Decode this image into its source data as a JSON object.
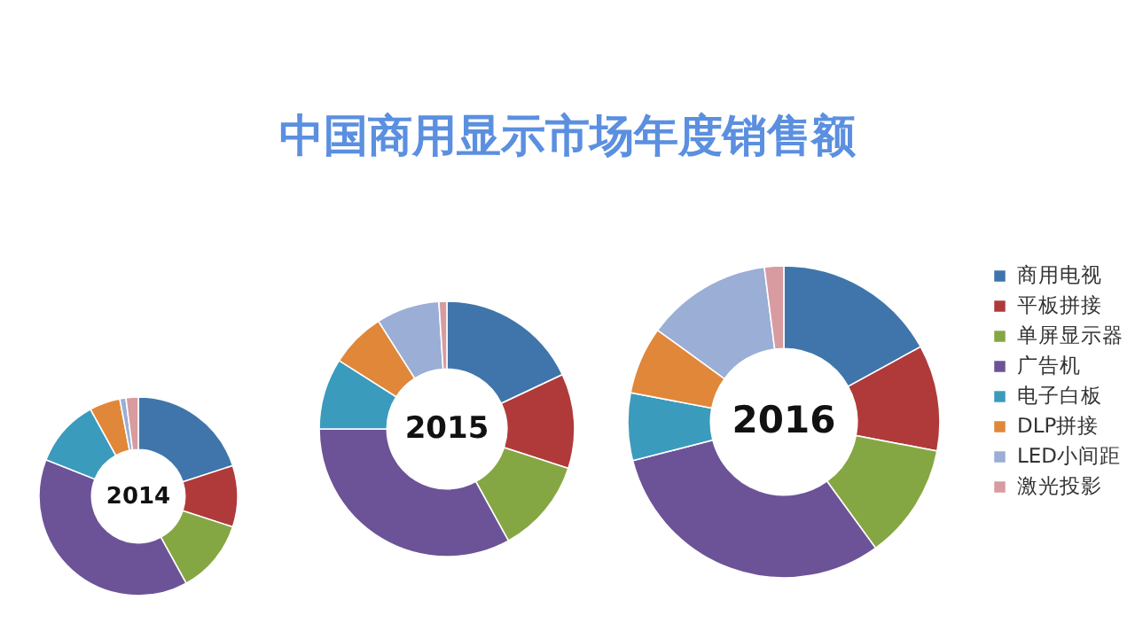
{
  "chart_data": [
    {
      "type": "other",
      "title": "中国商用显示市场年度销售额"
    },
    {
      "type": "donut",
      "title": "2014",
      "categories": [
        null,
        null,
        null,
        null,
        null,
        null,
        null,
        null
      ],
      "values": [
        20,
        10,
        12,
        39,
        11,
        5,
        1,
        2
      ],
      "colors": [
        "#3f75ab",
        "#b03a3a",
        "#85a743",
        "#6c5397",
        "#3a9bbd",
        "#e0873a",
        "#9aaed6",
        "#d79ba0"
      ]
    },
    {
      "type": "donut",
      "title": "2015",
      "categories": [
        null,
        null,
        null,
        null,
        null,
        null,
        null,
        null
      ],
      "values": [
        18,
        12,
        12,
        33,
        9,
        7,
        8,
        1
      ],
      "colors": [
        "#3f75ab",
        "#b03a3a",
        "#85a743",
        "#6c5397",
        "#3a9bbd",
        "#e0873a",
        "#9aaed6",
        "#d79ba0"
      ]
    },
    {
      "type": "donut",
      "title": "2016",
      "categories": [
        "商用电视",
        "平板拼接",
        "单屏显示器",
        "广告机",
        "电子白板",
        "DLP拼接",
        "LED小间距",
        "激光投影"
      ],
      "values": [
        17,
        11,
        12,
        31,
        7,
        7,
        13,
        2
      ],
      "colors": [
        "#3f75ab",
        "#b03a3a",
        "#85a743",
        "#6c5397",
        "#3a9bbd",
        "#e0873a",
        "#9aaed6",
        "#d79ba0"
      ],
      "legend": "right"
    }
  ]
}
